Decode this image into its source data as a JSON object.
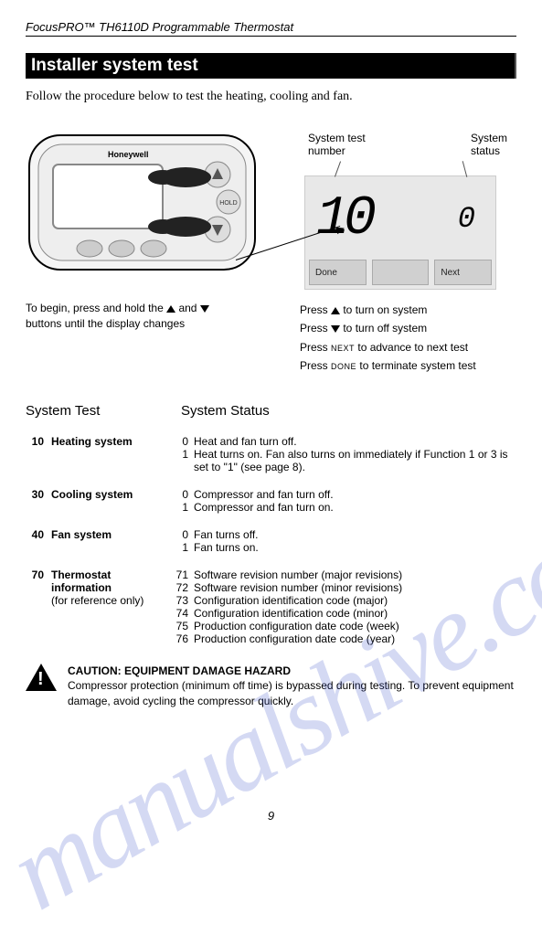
{
  "header": {
    "product": "FocusPRO™ TH6110D Programmable Thermostat"
  },
  "section_title": "Installer system test",
  "intro": "Follow the procedure below to test the heating, cooling and fan.",
  "thermostat": {
    "brand": "Honeywell",
    "hold_label": "HOLD",
    "button_shape_color": "#cccccc",
    "body_color": "#f0f0f0",
    "outline_color": "#000000"
  },
  "lcd": {
    "label_left": "System test\nnumber",
    "label_right": "System\nstatus",
    "big_value": "10",
    "small_value": "0",
    "btn_done": "Done",
    "btn_mid": "",
    "btn_next": "Next",
    "screen_bg": "#e8e8e8",
    "btn_bg": "#d0d0d0"
  },
  "captions": {
    "left_pre": "To begin, press and hold the ",
    "left_mid": " and ",
    "left_post": " buttons until the display changes",
    "right_lines": [
      {
        "pre": "Press ",
        "sym": "up",
        "post": " to turn on system"
      },
      {
        "pre": "Press ",
        "sym": "down",
        "post": " to turn off system"
      },
      {
        "pre": "Press ",
        "caps": "next",
        "post": " to advance to next test"
      },
      {
        "pre": "Press ",
        "caps": "done",
        "post": " to terminate system test"
      }
    ]
  },
  "sys_headers": {
    "test": "System Test",
    "status": "System Status"
  },
  "tests": [
    {
      "num": "10",
      "name": "Heating system",
      "sub": "",
      "statuses": [
        {
          "code": "0",
          "text": "Heat and fan turn off."
        },
        {
          "code": "1",
          "text": "Heat turns on. Fan also turns on immediately if Function 1 or 3 is set to \"1\" (see page 8)."
        }
      ]
    },
    {
      "num": "30",
      "name": "Cooling system",
      "sub": "",
      "statuses": [
        {
          "code": "0",
          "text": "Compressor and fan turn off."
        },
        {
          "code": "1",
          "text": "Compressor and fan turn on."
        }
      ]
    },
    {
      "num": "40",
      "name": "Fan system",
      "sub": "",
      "statuses": [
        {
          "code": "0",
          "text": "Fan turns off."
        },
        {
          "code": "1",
          "text": "Fan turns on."
        }
      ]
    },
    {
      "num": "70",
      "name": "Thermostat information",
      "sub": "(for reference only)",
      "statuses": [
        {
          "code": "71",
          "text": "Software revision number (major revisions)"
        },
        {
          "code": "72",
          "text": "Software revision number (minor revisions)"
        },
        {
          "code": "73",
          "text": "Configuration identification code (major)"
        },
        {
          "code": "74",
          "text": "Configuration identification code (minor)"
        },
        {
          "code": "75",
          "text": "Production configuration date code (week)"
        },
        {
          "code": "76",
          "text": "Production configuration date code (year)"
        }
      ]
    }
  ],
  "caution": {
    "title": "CAUTION: EQUIPMENT DAMAGE HAZARD",
    "body": "Compressor protection (minimum off time) is bypassed during testing. To prevent equipment damage, avoid cycling the compressor quickly."
  },
  "page_number": "9",
  "watermark": "manualshive.com",
  "watermark_color": "rgba(60,80,200,0.22)"
}
